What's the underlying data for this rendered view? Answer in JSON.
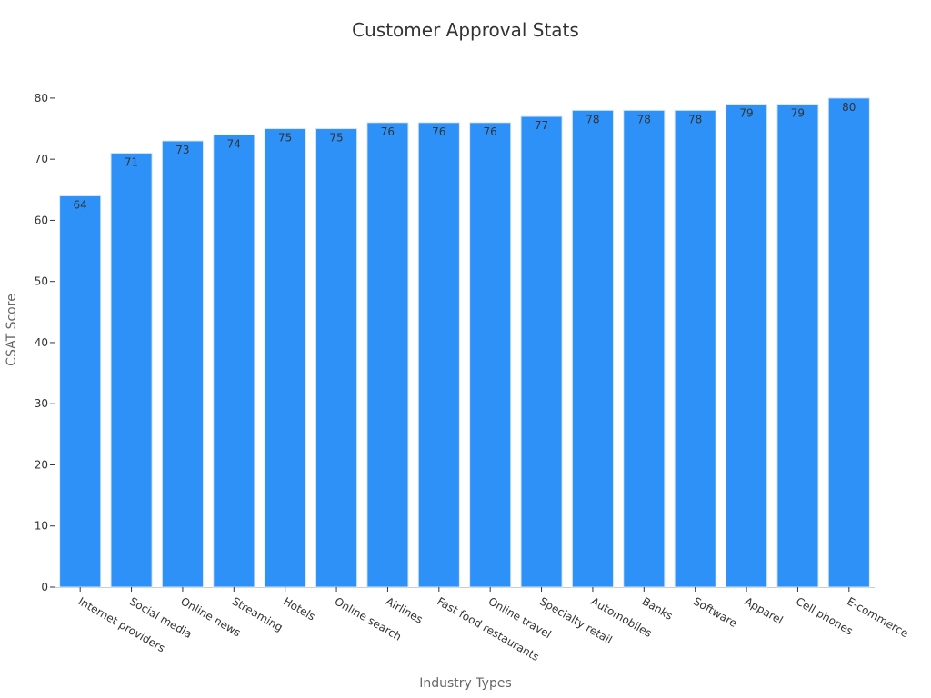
{
  "chart_data": {
    "type": "bar",
    "title": "Customer Approval Stats",
    "xlabel": "Industry Types",
    "ylabel": "CSAT Score",
    "categories": [
      "Internet providers",
      "Social media",
      "Online news",
      "Streaming",
      "Hotels",
      "Online search",
      "Airlines",
      "Fast food restaurants",
      "Online travel",
      "Specialty retail",
      "Automobiles",
      "Banks",
      "Software",
      "Apparel",
      "Cell phones",
      "E-commerce"
    ],
    "values": [
      64,
      71,
      73,
      74,
      75,
      75,
      76,
      76,
      76,
      77,
      78,
      78,
      78,
      79,
      79,
      80
    ],
    "yticks": [
      0,
      10,
      20,
      30,
      40,
      50,
      60,
      70,
      80
    ],
    "ylim": [
      0,
      84
    ],
    "grid": false,
    "legend": "none",
    "colors": {
      "bar": "#2e91f8",
      "text": "#333333",
      "axis_title": "#666666",
      "axis_line": "#cccccc"
    }
  }
}
